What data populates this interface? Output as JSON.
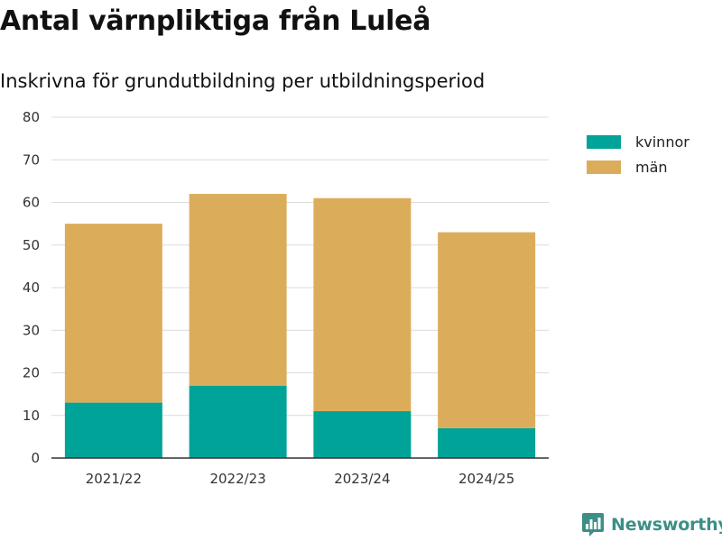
{
  "title": "Antal värnpliktiga från Luleå",
  "subtitle": "Inskrivna för grundutbildning per utbildningsperiod",
  "brand": {
    "name": "Newsworthy",
    "icon": "bar-chart-speech-icon",
    "color": "#3c8f87"
  },
  "chart_data": {
    "type": "bar",
    "stacked": true,
    "categories": [
      "2021/22",
      "2022/23",
      "2023/24",
      "2024/25"
    ],
    "series": [
      {
        "name": "kvinnor",
        "color": "#00a398",
        "values": [
          13,
          17,
          11,
          7
        ]
      },
      {
        "name": "män",
        "color": "#dbad5b",
        "values": [
          42,
          45,
          50,
          46
        ]
      }
    ],
    "ylim": [
      0,
      80
    ],
    "yticks": [
      0,
      10,
      20,
      30,
      40,
      50,
      60,
      70,
      80
    ],
    "grid": true,
    "legend": "top-right"
  }
}
